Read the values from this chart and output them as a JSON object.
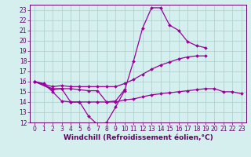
{
  "xlabel": "Windchill (Refroidissement éolien,°C)",
  "x_values": [
    0,
    1,
    2,
    3,
    4,
    5,
    6,
    7,
    8,
    9,
    10,
    11,
    12,
    13,
    14,
    15,
    16,
    17,
    18,
    19,
    20,
    21,
    22,
    23
  ],
  "line1": [
    16.0,
    15.8,
    15.0,
    14.1,
    14.0,
    14.0,
    12.6,
    11.8,
    12.0,
    13.5,
    15.1,
    18.0,
    21.2,
    23.2,
    23.2,
    21.5,
    21.0,
    19.9,
    19.5,
    19.3,
    null,
    null,
    null,
    null
  ],
  "line2": [
    16.0,
    null,
    15.2,
    15.3,
    15.3,
    15.2,
    15.1,
    15.1,
    14.0,
    14.1,
    15.2,
    null,
    null,
    null,
    null,
    null,
    null,
    null,
    null,
    null,
    null,
    null,
    null,
    null
  ],
  "line3": [
    16.0,
    null,
    15.5,
    15.6,
    15.5,
    15.5,
    15.5,
    15.5,
    15.5,
    15.5,
    15.8,
    16.2,
    16.7,
    17.2,
    17.6,
    17.9,
    18.2,
    18.4,
    18.5,
    18.5,
    null,
    null,
    null,
    null
  ],
  "line4": [
    16.0,
    null,
    15.3,
    15.3,
    14.0,
    14.0,
    14.0,
    14.0,
    14.0,
    14.0,
    14.2,
    14.3,
    14.5,
    14.7,
    14.8,
    14.9,
    15.0,
    15.1,
    15.2,
    15.3,
    15.3,
    15.0,
    15.0,
    14.8
  ],
  "bg_color": "#d5efef",
  "grid_color": "#aacccc",
  "line_color": "#990099",
  "marker": "D",
  "markersize": 2.0,
  "linewidth": 0.9,
  "xlim": [
    -0.5,
    23.5
  ],
  "ylim": [
    12,
    23.5
  ],
  "yticks": [
    12,
    13,
    14,
    15,
    16,
    17,
    18,
    19,
    20,
    21,
    22,
    23
  ],
  "xticks": [
    0,
    1,
    2,
    3,
    4,
    5,
    6,
    7,
    8,
    9,
    10,
    11,
    12,
    13,
    14,
    15,
    16,
    17,
    18,
    19,
    20,
    21,
    22,
    23
  ],
  "tick_fontsize": 5.5,
  "xlabel_fontsize": 6.5,
  "axis_color": "#660066"
}
